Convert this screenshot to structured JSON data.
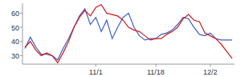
{
  "chart_data": {
    "type": "line",
    "categories": [
      null,
      null,
      null,
      null,
      null,
      null,
      null,
      null,
      null,
      null,
      null,
      null,
      null,
      "11/1",
      null,
      null,
      null,
      null,
      null,
      null,
      null,
      null,
      null,
      null,
      "11/18",
      null,
      null,
      null,
      null,
      null,
      null,
      null,
      null,
      null,
      "12/2",
      null,
      null,
      null,
      null
    ],
    "series": [
      {
        "color": "#3a5fcd",
        "values": [
          35,
          43,
          36,
          31,
          31,
          30,
          27,
          35,
          42,
          50,
          58,
          63,
          52,
          57,
          47,
          55,
          42,
          50,
          57,
          60,
          50,
          44,
          41,
          42,
          42,
          45,
          46,
          48,
          52,
          57,
          56,
          50,
          45,
          44,
          46,
          42,
          41,
          41,
          41
        ]
      },
      {
        "color": "#d11a1a",
        "values": [
          36,
          40,
          34,
          30,
          32,
          30,
          25,
          32,
          40,
          50,
          57,
          62,
          58,
          64,
          66,
          60,
          59,
          58,
          55,
          50,
          48,
          47,
          44,
          41,
          42,
          42,
          45,
          47,
          50,
          56,
          59,
          55,
          54,
          46,
          44,
          42,
          38,
          33,
          28
        ]
      }
    ],
    "ylim": [
      24,
      67
    ],
    "yticks": [
      30,
      40,
      50,
      60
    ],
    "grid": false
  }
}
